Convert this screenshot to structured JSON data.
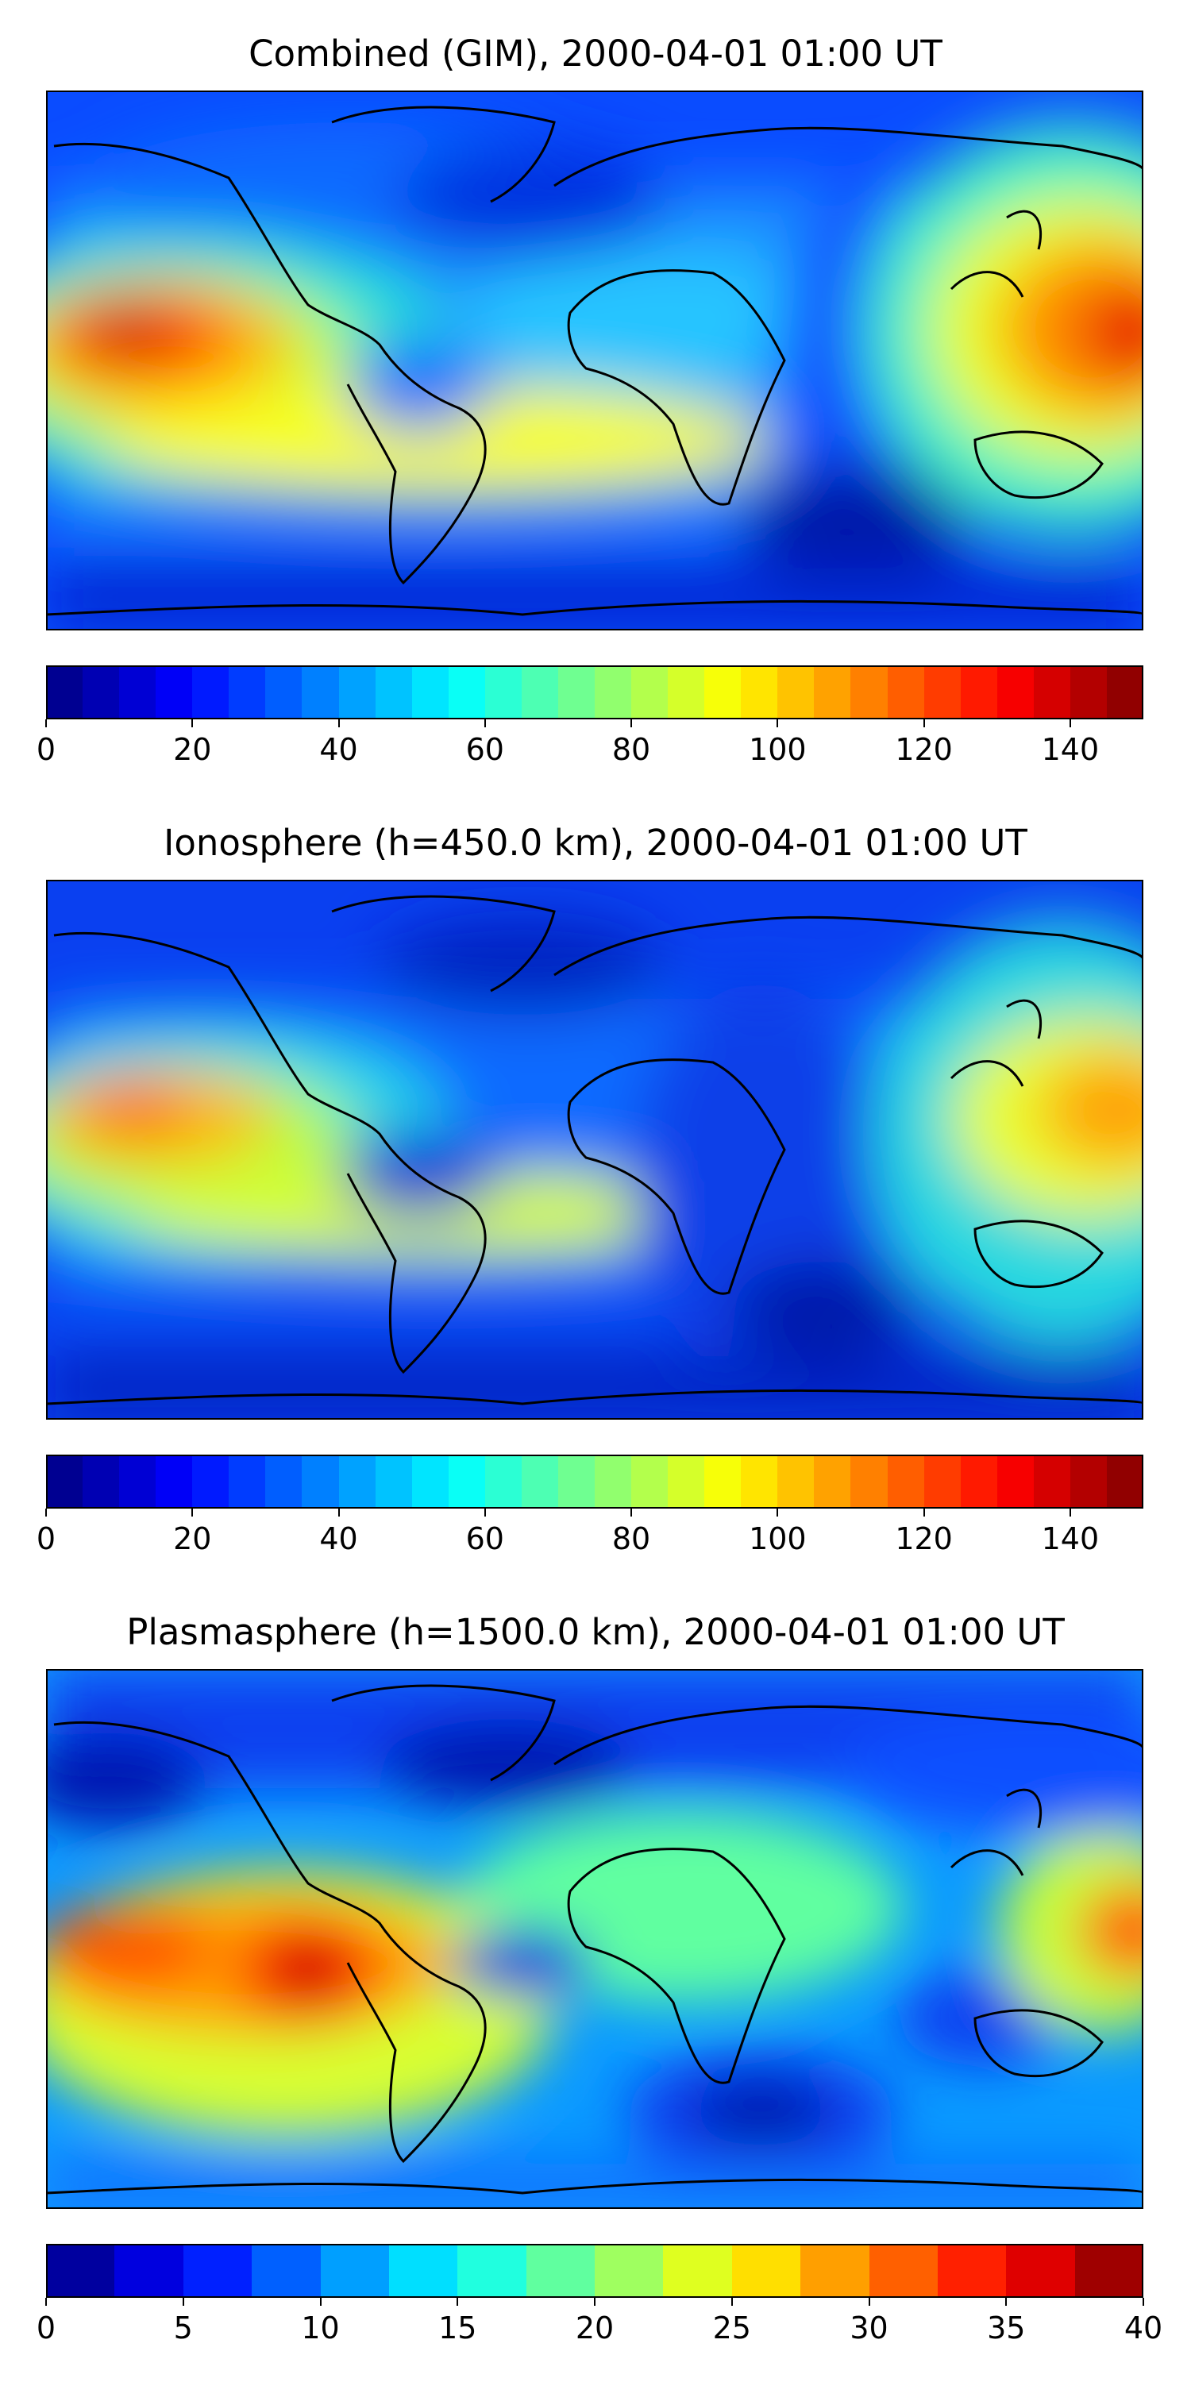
{
  "panels": [
    {
      "title": "Combined (GIM), 2000-04-01 01:00 UT",
      "colorbar": {
        "min": 0,
        "max": 150,
        "levels": 30,
        "ticks": [
          "0",
          "20",
          "40",
          "60",
          "80",
          "100",
          "120",
          "140"
        ],
        "tick_values": [
          0,
          20,
          40,
          60,
          80,
          100,
          120,
          140
        ]
      }
    },
    {
      "title": "Ionosphere  (h=450.0 km), 2000-04-01 01:00 UT",
      "colorbar": {
        "min": 0,
        "max": 150,
        "levels": 30,
        "ticks": [
          "0",
          "20",
          "40",
          "60",
          "80",
          "100",
          "120",
          "140"
        ],
        "tick_values": [
          0,
          20,
          40,
          60,
          80,
          100,
          120,
          140
        ]
      }
    },
    {
      "title": "Plasmasphere (h=1500.0 km), 2000-04-01 01:00 UT",
      "colorbar": {
        "min": 0,
        "max": 40,
        "levels": 16,
        "ticks": [
          "0",
          "5",
          "10",
          "15",
          "20",
          "25",
          "30",
          "35",
          "40"
        ],
        "tick_values": [
          0,
          5,
          10,
          15,
          20,
          25,
          30,
          35,
          40
        ]
      }
    }
  ],
  "colormap": "jet",
  "colors": {
    "map_frame": "#000000",
    "coastline": "#000000"
  }
}
